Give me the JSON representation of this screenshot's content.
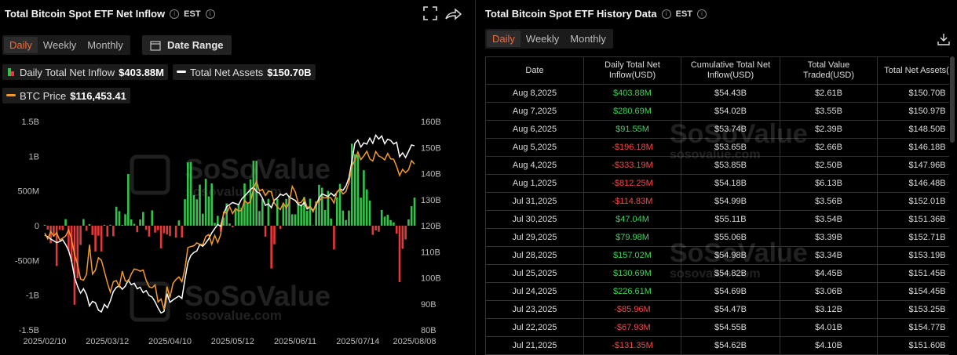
{
  "inflow_panel": {
    "title": "Total Bitcoin Spot ETF Net Inflow",
    "timezone": "EST",
    "tabs": [
      "Daily",
      "Weekly",
      "Monthly"
    ],
    "date_range": "Date Range"
  },
  "watermark": {
    "brand": "SoSoValue",
    "url": "sosovalue.com"
  },
  "chart_data": {
    "type": "bar",
    "categories": [
      "2025/02/10",
      null,
      null,
      null,
      null,
      null,
      null,
      null,
      null,
      null,
      null,
      null,
      null,
      null,
      null,
      null,
      null,
      null,
      null,
      null,
      null,
      "2025/03/12",
      null,
      null,
      null,
      null,
      null,
      null,
      null,
      null,
      null,
      null,
      null,
      null,
      null,
      null,
      null,
      null,
      null,
      null,
      null,
      null,
      "2025/04/10",
      null,
      null,
      null,
      null,
      null,
      null,
      null,
      null,
      null,
      null,
      null,
      null,
      null,
      null,
      null,
      null,
      null,
      null,
      null,
      null,
      "2025/05/12",
      null,
      null,
      null,
      null,
      null,
      null,
      null,
      null,
      null,
      null,
      null,
      null,
      null,
      null,
      null,
      null,
      null,
      null,
      null,
      null,
      "2025/06/11",
      null,
      null,
      null,
      null,
      null,
      null,
      null,
      null,
      null,
      null,
      null,
      null,
      null,
      null,
      null,
      null,
      null,
      null,
      null,
      null,
      "2025/07/14",
      null,
      null,
      null,
      null,
      null,
      null,
      null,
      null,
      null,
      null,
      null,
      null,
      null,
      null,
      null,
      null,
      null,
      null,
      "2025/08/08"
    ],
    "ylim": [
      -1500,
      1500
    ],
    "yticks": [
      {
        "value": -1500,
        "label": "-1.5B"
      },
      {
        "value": -1000,
        "label": "-1B"
      },
      {
        "value": -500,
        "label": "-500M"
      },
      0,
      {
        "value": 500,
        "label": "500M"
      },
      {
        "value": 1000,
        "label": "1B"
      },
      {
        "value": 1500,
        "label": "1.5B"
      }
    ],
    "y2lim": [
      80,
      160
    ],
    "y2ticks": [
      {
        "value": 80,
        "label": "80B"
      },
      {
        "value": 90,
        "label": "90B"
      },
      {
        "value": 100,
        "label": "100B"
      },
      {
        "value": 110,
        "label": "110B"
      },
      {
        "value": 120,
        "label": "120B"
      },
      {
        "value": 130,
        "label": "130B"
      },
      {
        "value": 140,
        "label": "140B"
      },
      {
        "value": 150,
        "label": "150B"
      },
      {
        "value": 160,
        "label": "160B"
      }
    ],
    "grid": false,
    "series": [
      {
        "name": "Daily Total Net Inflow",
        "legend_value": "$403.88M",
        "type": "bar",
        "positive_color": "#33c24b",
        "negative_color": "#e5383b",
        "values": [
          13,
          -56,
          -252,
          -157,
          -580,
          -60,
          -65,
          94,
          -365,
          -517,
          -1138,
          -755,
          -278,
          95,
          -74,
          22,
          -134,
          -371,
          -143,
          -371,
          13,
          -157,
          13,
          -152,
          274,
          209,
          11,
          165,
          744,
          90,
          26,
          -93,
          89,
          197,
          -61,
          -157,
          221,
          -99,
          -64,
          -326,
          -109,
          -127,
          -150,
          1,
          -172,
          76,
          -170,
          381,
          912,
          917,
          442,
          380,
          591,
          173,
          675,
          422,
          608,
          40,
          142,
          -86,
          117,
          321,
          32,
          -22,
          232,
          319,
          260,
          608,
          329,
          667,
          935,
          934,
          211,
          385,
          -158,
          386,
          -616,
          -268,
          387,
          -47,
          300,
          386,
          431,
          164,
          164,
          322,
          301,
          412,
          216,
          389,
          6,
          350,
          589,
          547,
          226,
          501,
          102,
          -343,
          408,
          602,
          217,
          81,
          218,
          1180,
          1030,
          1020,
          403,
          799,
          523,
          363,
          -131.35,
          -67.93,
          -85.96,
          226.61,
          130.69,
          157.02,
          79.98,
          47.04,
          -114.83,
          -812.25,
          -333.19,
          -196.18,
          91.55,
          280.69,
          403.88
        ]
      },
      {
        "name": "Total Net Assets",
        "legend_value": "$150.70B",
        "type": "line",
        "axis": "y2",
        "color": "#ffffff",
        "values": [
          116.4,
          115.8,
          114.9,
          114.2,
          113.5,
          113.9,
          114.6,
          112.8,
          110.5,
          106.4,
          100.2,
          96.7,
          94.1,
          95.8,
          93.6,
          89.2,
          91,
          90.4,
          87.6,
          86.9,
          89.8,
          88.5,
          91.2,
          94.7,
          96.3,
          97,
          95.6,
          96.8,
          99.1,
          97.4,
          97.9,
          95.8,
          96.4,
          94.3,
          95.1,
          93.2,
          92.6,
          90.8,
          88.4,
          86.5,
          87.1,
          93.9,
          90.6,
          91.5,
          92.3,
          93,
          92.1,
          99.4,
          105.8,
          108.6,
          109.7,
          110.3,
          112.8,
          112.1,
          113.4,
          115,
          117.2,
          118.9,
          120.5,
          119.8,
          124.6,
          127.3,
          128.1,
          128.9,
          128.5,
          128,
          130.2,
          131.4,
          132.6,
          133.9,
          134.8,
          133.1,
          132.5,
          130.6,
          127.8,
          128.4,
          126.9,
          129.8,
          130.7,
          132.1,
          131.6,
          132.4,
          131,
          130.3,
          129.7,
          128.2,
          127.6,
          128.9,
          126.4,
          127.3,
          125.8,
          127.9,
          130.6,
          132.2,
          131.7,
          131.2,
          132.5,
          131.4,
          132.8,
          134.1,
          133.6,
          135.2,
          138.4,
          144.7,
          151.6,
          152.9,
          150.2,
          151.8,
          151.3,
          153.6,
          151.6,
          154.77,
          153.25,
          154.45,
          151.45,
          153.19,
          152.71,
          151.36,
          152.01,
          146.48,
          147.96,
          146.18,
          148.5,
          150.97,
          150.7
        ]
      },
      {
        "name": "BTC Price",
        "legend_value": "$116,453.41",
        "type": "line",
        "color": "#f39a2b",
        "values": [
          97400,
          95800,
          97800,
          96600,
          97500,
          95500,
          96000,
          96600,
          98300,
          95700,
          91500,
          88700,
          84700,
          84400,
          86000,
          94200,
          86100,
          87200,
          90600,
          89900,
          86800,
          83700,
          81100,
          84000,
          84300,
          82600,
          86900,
          84200,
          84000,
          86100,
          87500,
          87300,
          86900,
          87200,
          84400,
          82600,
          82300,
          83100,
          78400,
          79200,
          76300,
          82600,
          79600,
          83500,
          84600,
          85300,
          84000,
          87500,
          93400,
          93700,
          93900,
          94700,
          94300,
          94200,
          96500,
          97000,
          94300,
          96800,
          94800,
          97000,
          103200,
          102900,
          104700,
          102800,
          104200,
          103500,
          103700,
          106400,
          105600,
          106000,
          109700,
          111700,
          109000,
          109500,
          107800,
          109000,
          108800,
          105700,
          104600,
          103900,
          105700,
          104300,
          105800,
          110300,
          108800,
          105700,
          105900,
          107100,
          104500,
          104700,
          103300,
          105700,
          106100,
          107300,
          107100,
          107300,
          107100,
          105700,
          108800,
          109600,
          108200,
          108900,
          111300,
          115900,
          117500,
          119800,
          117700,
          118700,
          120000,
          117900,
          117300,
          119900,
          118700,
          118300,
          117600,
          119400,
          117900,
          117800,
          115800,
          113300,
          115000,
          114100,
          114900,
          117400,
          116453.41
        ]
      }
    ]
  },
  "history": {
    "title": "Total Bitcoin Spot ETF History Data",
    "timezone": "EST",
    "tabs": [
      "Daily",
      "Weekly",
      "Monthly"
    ],
    "columns": [
      "Date",
      "Daily Total Net Inflow(USD)",
      "Cumulative Total Net Inflow(USD)",
      "Total Value Traded(USD)",
      "Total Net Assets(USD)"
    ],
    "rows": [
      [
        "Aug 8,2025",
        "$403.88M",
        "$54.43B",
        "$2.61B",
        "$150.70B"
      ],
      [
        "Aug 7,2025",
        "$280.69M",
        "$54.02B",
        "$3.55B",
        "$150.97B"
      ],
      [
        "Aug 6,2025",
        "$91.55M",
        "$53.74B",
        "$2.39B",
        "$148.50B"
      ],
      [
        "Aug 5,2025",
        "-$196.18M",
        "$53.65B",
        "$2.66B",
        "$146.18B"
      ],
      [
        "Aug 4,2025",
        "-$333.19M",
        "$53.85B",
        "$2.50B",
        "$147.96B"
      ],
      [
        "Aug 1,2025",
        "-$812.25M",
        "$54.18B",
        "$6.13B",
        "$146.48B"
      ],
      [
        "Jul 31,2025",
        "-$114.83M",
        "$54.99B",
        "$3.56B",
        "$152.01B"
      ],
      [
        "Jul 30,2025",
        "$47.04M",
        "$55.11B",
        "$3.54B",
        "$151.36B"
      ],
      [
        "Jul 29,2025",
        "$79.98M",
        "$55.06B",
        "$3.39B",
        "$152.71B"
      ],
      [
        "Jul 28,2025",
        "$157.02M",
        "$54.98B",
        "$3.34B",
        "$153.19B"
      ],
      [
        "Jul 25,2025",
        "$130.69M",
        "$54.82B",
        "$4.45B",
        "$151.45B"
      ],
      [
        "Jul 24,2025",
        "$226.61M",
        "$54.69B",
        "$3.06B",
        "$154.45B"
      ],
      [
        "Jul 23,2025",
        "-$85.96M",
        "$54.47B",
        "$3.12B",
        "$153.25B"
      ],
      [
        "Jul 22,2025",
        "-$67.93M",
        "$54.55B",
        "$4.01B",
        "$154.77B"
      ],
      [
        "Jul 21,2025",
        "-$131.35M",
        "$54.62B",
        "$4.10B",
        "$151.60B"
      ]
    ]
  }
}
